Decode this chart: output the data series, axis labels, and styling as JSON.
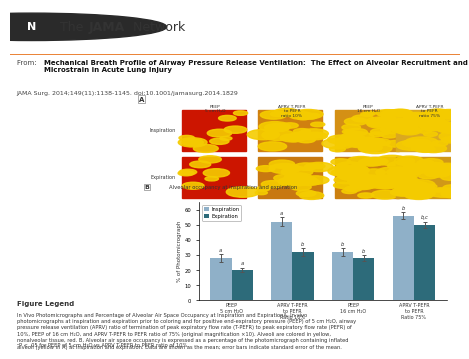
{
  "title_bold": "Mechanical Breath Profile of Airway Pressure Release Ventilation:  The Effect on Alveolar Recruitment and Microstrain in Acute Lung Injury",
  "citation": "JAMA Surg. 2014;149(11):1138-1145. doi:10.1001/jamasurg.2014.1829",
  "bar_panel_title": "Alveolar occupancy at inspiration and expiration",
  "bar_panel_label": "B",
  "image_panel_label": "A",
  "x_labels": [
    "PEEP\n5 cm H₂O",
    "APRV T-PEFR\nto PEFR\nRatio 10%",
    "PEEP\n16 cm H₂O",
    "APRV T-PEFR\nto PEFR\nRatio 75%"
  ],
  "inspiration_values": [
    28,
    52,
    32,
    56
  ],
  "expiration_values": [
    20,
    32,
    28,
    50
  ],
  "inspiration_errors": [
    2.5,
    3.0,
    2.5,
    2.5
  ],
  "expiration_errors": [
    1.5,
    2.5,
    2.0,
    2.0
  ],
  "inspiration_color": "#8fb0c8",
  "expiration_color": "#2d6b7a",
  "ylabel": "% of Photomicrograph",
  "ylim": [
    0,
    65
  ],
  "yticks": [
    0,
    10,
    20,
    30,
    40,
    50,
    60
  ],
  "legend_labels": [
    "Inspiration",
    "Expiration"
  ],
  "sig_insp": [
    "a",
    "a",
    "b",
    "b"
  ],
  "sig_exp": [
    "a",
    "b",
    "b",
    "b,c"
  ],
  "figure_legend_title": "Figure Legend",
  "footnote": "ᵃP < .05 for PEEP of 5 cm H₂O vs APRV T-PEFR to PEFR ratio of 10%.",
  "header_bg": "#f5f5f5",
  "orange_line": "#e87722",
  "img_col_headers": [
    "PEEP\n5 cm H₂O",
    "APRV T-PEFR\nto PEFR\nratio 10%",
    "PEEP\n16 cm H₂O",
    "APRV T-PEFR\nto PEFR\nratio 75%"
  ],
  "img_row_headers": [
    "Inspiration",
    "Expiration"
  ],
  "insp_base_colors": [
    "#cc1500",
    "#d08010",
    "#d49015",
    "#daa820"
  ],
  "exp_base_colors": [
    "#cc1500",
    "#c87810",
    "#cc8010",
    "#d09818"
  ],
  "dot_color": "#f5cc00",
  "dot_color2": "#f0c000",
  "legend_body_lines": [
    "In Vivo Photomicrographs and Percentage of Alveolar Air Space Occupancy at Inspiration and ExpirationA, In vivo",
    "photomicrographs at inspiration and expiration prior to coloring and for positive end-expiratory pressure (PEEP) of 5 cm H₂O, airway",
    "pressure release ventilation (APRV) ratio of termination of peak expiratory flow rate (T-PEFR) to peak expiratory flow rate (PEFR) of",
    "10%, PEEP of 16 cm H₂O, and APRV T-PEFR to PEFR ratio of 75% (original magnification ×10). Alveoli are colored in yellow,",
    "nonalveolar tissue, red. B, Alveolar air space occupancy is expressed as a percentage of the photomicrograph containing inflated",
    "alveoli (yellow in A) at inspiration and expiration. Data are shown as the mean; error bars indicate standard error of the mean."
  ]
}
